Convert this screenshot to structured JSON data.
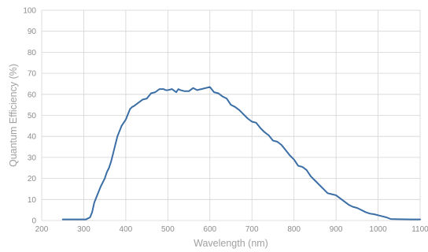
{
  "chart_data": {
    "type": "line",
    "title": "",
    "xlabel": "Wavelength (nm)",
    "ylabel": "Quantum Efficiency (%)",
    "xlim": [
      200,
      1100
    ],
    "ylim": [
      0,
      100
    ],
    "x_ticks": [
      "200",
      "300",
      "400",
      "500",
      "600",
      "700",
      "800",
      "900",
      "1000",
      "1100"
    ],
    "y_ticks": [
      "0",
      "10",
      "20",
      "30",
      "40",
      "50",
      "60",
      "70",
      "80",
      "90",
      "100"
    ],
    "grid": true,
    "line_color": "#3a6ea5",
    "grid_color": "#d4d4d4",
    "series": [
      {
        "x": [
          250,
          280,
          305,
          315,
          320,
          325,
          330,
          340,
          350,
          355,
          360,
          365,
          370,
          380,
          390,
          400,
          410,
          415,
          420,
          430,
          440,
          450,
          460,
          470,
          480,
          490,
          495,
          500,
          510,
          520,
          525,
          530,
          540,
          550,
          560,
          570,
          575,
          580,
          590,
          600,
          610,
          620,
          630,
          640,
          650,
          660,
          670,
          680,
          690,
          700,
          710,
          720,
          730,
          740,
          750,
          760,
          770,
          780,
          790,
          800,
          810,
          820,
          830,
          840,
          850,
          860,
          870,
          880,
          890,
          900,
          910,
          920,
          930,
          940,
          950,
          960,
          970,
          980,
          990,
          1000,
          1010,
          1020,
          1030,
          1050,
          1080,
          1100
        ],
        "y": [
          0.5,
          0.5,
          0.5,
          1.5,
          4.0,
          8.5,
          11.0,
          16.0,
          20.0,
          23.0,
          25.0,
          28.0,
          32.0,
          40.0,
          45.0,
          48.0,
          53.0,
          54.0,
          54.5,
          56.0,
          57.5,
          58.0,
          60.5,
          61.0,
          62.5,
          62.5,
          62.0,
          62.0,
          62.5,
          61.0,
          62.5,
          62.0,
          61.5,
          61.5,
          63.0,
          62.0,
          62.3,
          62.5,
          63.0,
          63.5,
          61.0,
          60.5,
          59.0,
          58.0,
          55.0,
          54.0,
          52.5,
          50.5,
          48.5,
          47.0,
          46.5,
          44.0,
          42.0,
          40.5,
          38.0,
          37.5,
          36.0,
          33.5,
          31.0,
          29.0,
          26.0,
          25.5,
          24.0,
          21.0,
          19.0,
          17.0,
          15.0,
          13.0,
          12.5,
          12.0,
          10.5,
          9.0,
          7.5,
          6.5,
          6.0,
          5.0,
          4.0,
          3.3,
          3.0,
          2.5,
          2.0,
          1.5,
          0.7,
          0.6,
          0.5,
          0.5
        ]
      }
    ]
  }
}
